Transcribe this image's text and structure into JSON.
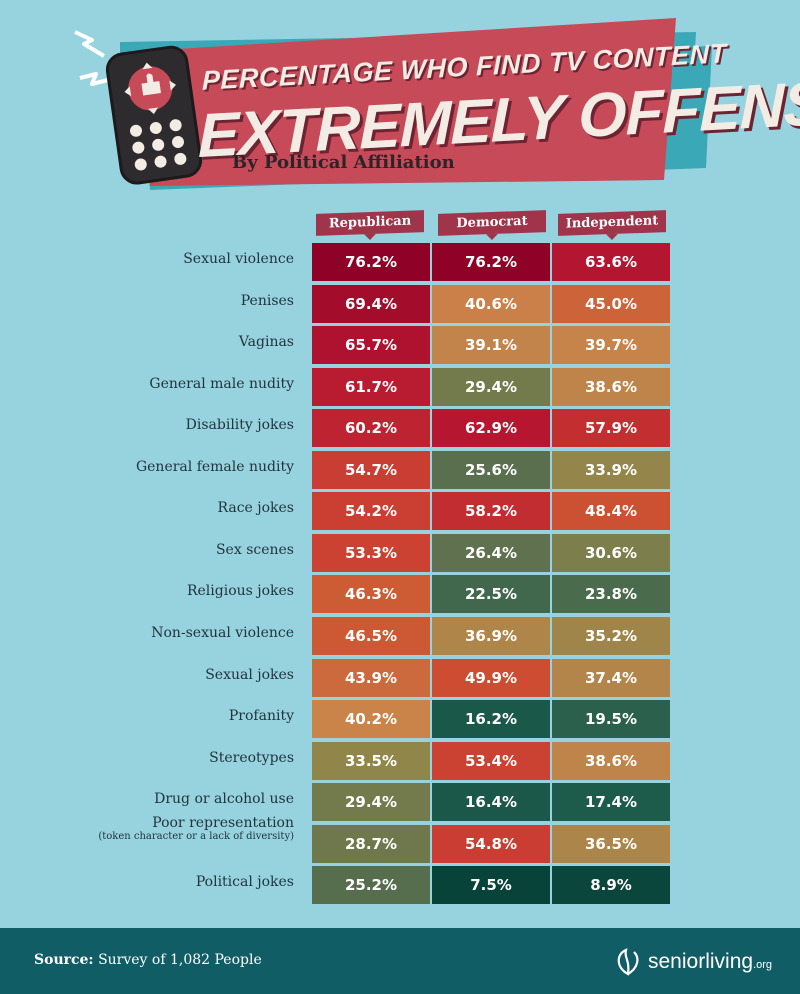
{
  "header": {
    "title_line1": "PERCENTAGE WHO FIND TV CONTENT",
    "title_line2": "EXTREMELY OFFENSIVE",
    "subtitle": "By Political Affiliation"
  },
  "colors": {
    "background": "#96d3de",
    "banner_red": "#c64a58",
    "banner_teal": "#3aa8b6",
    "footer": "#115d66",
    "scale_low": "#0b4a40",
    "scale_mid": "#c9884e",
    "scale_high": "#8e0028"
  },
  "chart_data": {
    "type": "table",
    "title": "PERCENTAGE WHO FIND TV CONTENT EXTREMELY OFFENSIVE",
    "subtitle": "By Political Affiliation",
    "columns": [
      "Republican",
      "Democrat",
      "Independent"
    ],
    "rows": [
      {
        "label": "Sexual violence",
        "sub": "",
        "values": [
          76.2,
          76.2,
          63.6
        ],
        "display": [
          "76.2%",
          "76.2%",
          "63.6%"
        ]
      },
      {
        "label": "Penises",
        "sub": "",
        "values": [
          69.4,
          40.6,
          45.0
        ],
        "display": [
          "69.4%",
          "40.6%",
          "45.0%"
        ]
      },
      {
        "label": "Vaginas",
        "sub": "",
        "values": [
          65.7,
          39.1,
          39.7
        ],
        "display": [
          "65.7%",
          "39.1%",
          "39.7%"
        ]
      },
      {
        "label": "General male nudity",
        "sub": "",
        "values": [
          61.7,
          29.4,
          38.6
        ],
        "display": [
          "61.7%",
          "29.4%",
          "38.6%"
        ]
      },
      {
        "label": "Disability jokes",
        "sub": "",
        "values": [
          60.2,
          62.9,
          57.9
        ],
        "display": [
          "60.2%",
          "62.9%",
          "57.9%"
        ]
      },
      {
        "label": "General female nudity",
        "sub": "",
        "values": [
          54.7,
          25.6,
          33.9
        ],
        "display": [
          "54.7%",
          "25.6%",
          "33.9%"
        ]
      },
      {
        "label": "Race jokes",
        "sub": "",
        "values": [
          54.2,
          58.2,
          48.4
        ],
        "display": [
          "54.2%",
          "58.2%",
          "48.4%"
        ]
      },
      {
        "label": "Sex scenes",
        "sub": "",
        "values": [
          53.3,
          26.4,
          30.6
        ],
        "display": [
          "53.3%",
          "26.4%",
          "30.6%"
        ]
      },
      {
        "label": "Religious jokes",
        "sub": "",
        "values": [
          46.3,
          22.5,
          23.8
        ],
        "display": [
          "46.3%",
          "22.5%",
          "23.8%"
        ]
      },
      {
        "label": "Non-sexual violence",
        "sub": "",
        "values": [
          46.5,
          36.9,
          35.2
        ],
        "display": [
          "46.5%",
          "36.9%",
          "35.2%"
        ]
      },
      {
        "label": "Sexual jokes",
        "sub": "",
        "values": [
          43.9,
          49.9,
          37.4
        ],
        "display": [
          "43.9%",
          "49.9%",
          "37.4%"
        ]
      },
      {
        "label": "Profanity",
        "sub": "",
        "values": [
          40.2,
          16.2,
          19.5
        ],
        "display": [
          "40.2%",
          "16.2%",
          "19.5%"
        ]
      },
      {
        "label": "Stereotypes",
        "sub": "",
        "values": [
          33.5,
          53.4,
          38.6
        ],
        "display": [
          "33.5%",
          "53.4%",
          "38.6%"
        ]
      },
      {
        "label": "Drug or alcohol use",
        "sub": "",
        "values": [
          29.4,
          16.4,
          17.4
        ],
        "display": [
          "29.4%",
          "16.4%",
          "17.4%"
        ]
      },
      {
        "label": "Poor representation",
        "sub": "(token character or a lack of diversity)",
        "values": [
          28.7,
          54.8,
          36.5
        ],
        "display": [
          "28.7%",
          "54.8%",
          "36.5%"
        ]
      },
      {
        "label": "Political jokes",
        "sub": "",
        "values": [
          25.2,
          7.5,
          8.9
        ],
        "display": [
          "25.2%",
          "7.5%",
          "8.9%"
        ]
      }
    ]
  },
  "footer": {
    "source_label": "Source:",
    "source_text": "Survey of 1,082 People",
    "logo_text": "seniorliving",
    "logo_suffix": ".org"
  }
}
